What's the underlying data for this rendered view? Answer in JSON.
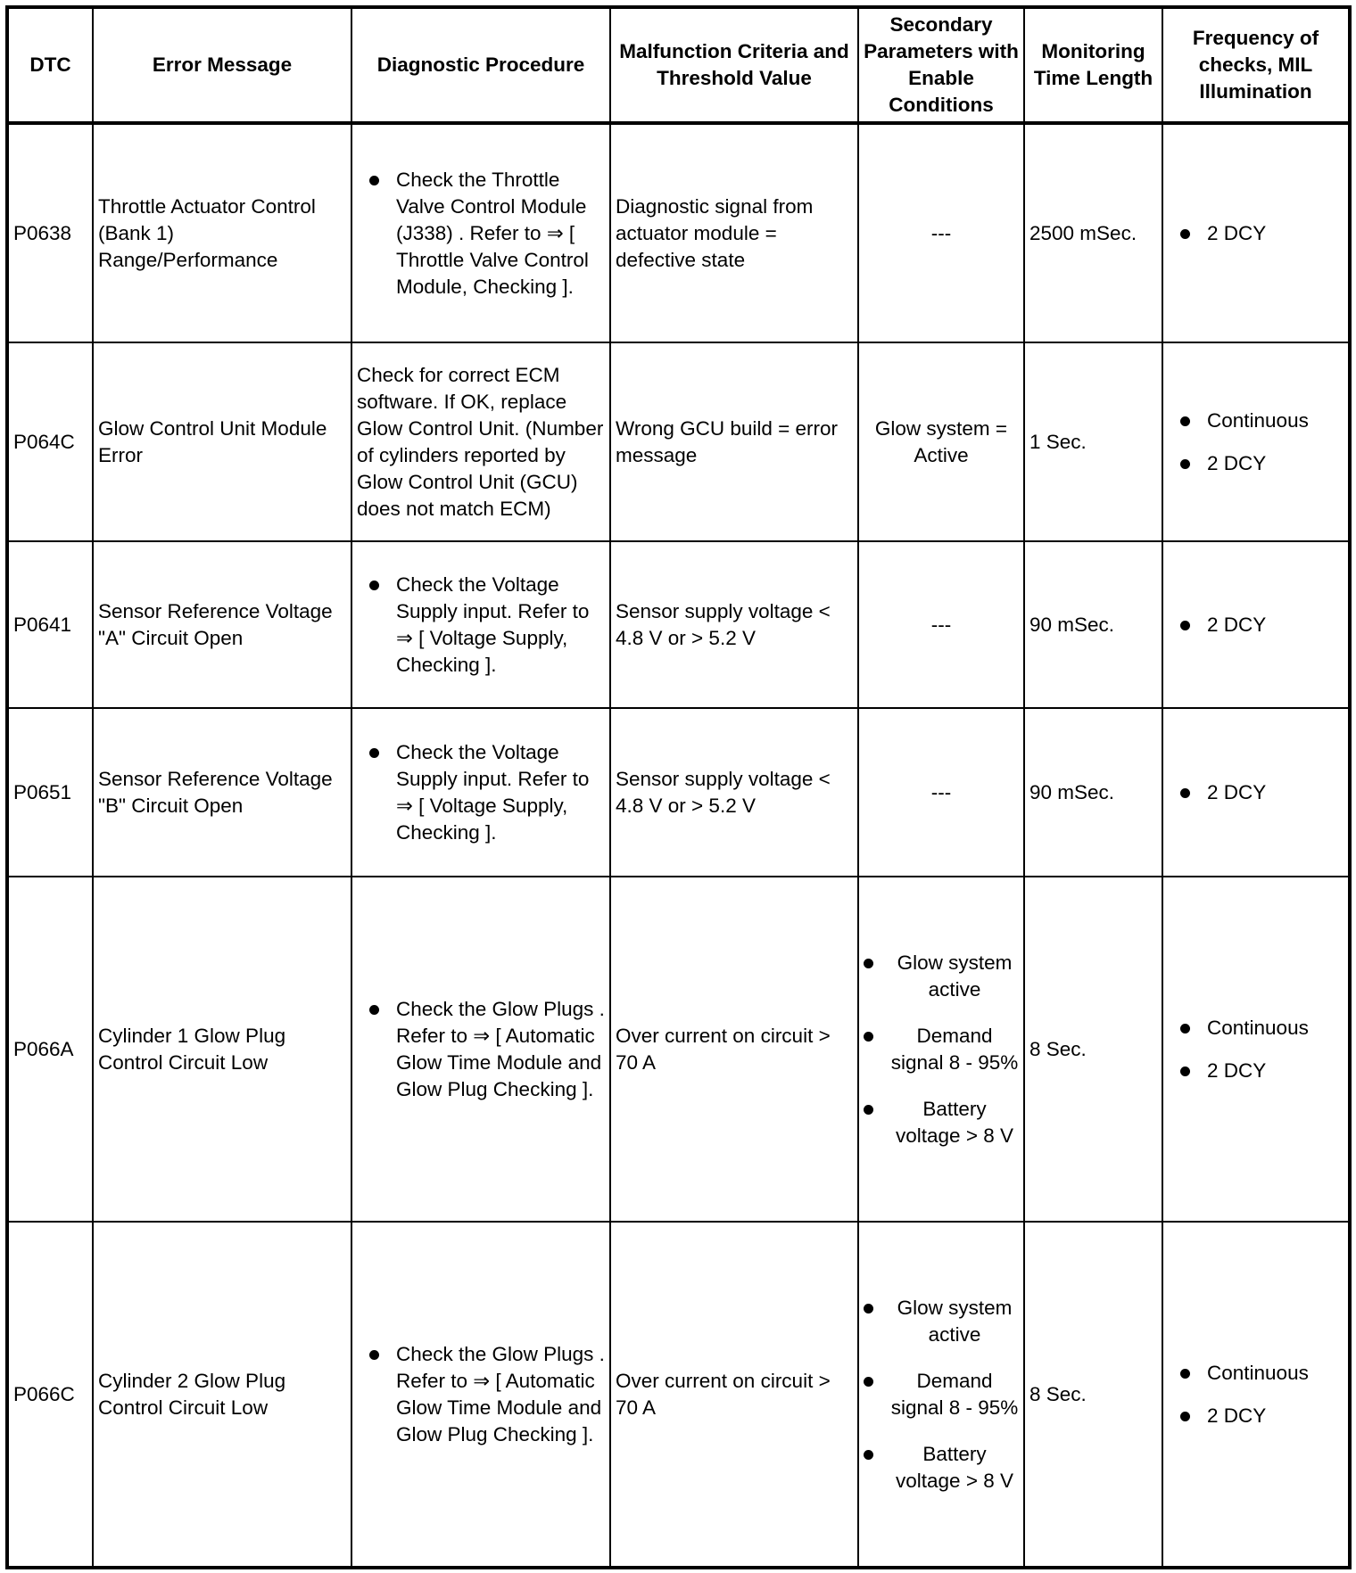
{
  "headers": [
    "DTC",
    "Error Message",
    "Diagnostic Procedure",
    "Malfunction Criteria and Threshold Value",
    "Secondary Parameters with Enable Conditions",
    "Monitoring Time Length",
    "Frequency of checks, MIL Illumination"
  ],
  "rows": [
    {
      "dtc": "P0638",
      "error": "Throttle Actuator Control (Bank 1) Range/Performance",
      "procedure_bullets": [
        "Check the Throttle Valve Control Module (J338) . Refer to ⇒ [ Throttle Valve Control Module, Checking ]."
      ],
      "procedure_text": "",
      "criteria": "Diagnostic signal from actuator module = defective state",
      "secondary_text": "---",
      "secondary_bullets": [],
      "time": "2500 mSec.",
      "frequency": [
        "2 DCY"
      ]
    },
    {
      "dtc": "P064C",
      "error": "Glow Control Unit Module Error",
      "procedure_bullets": [],
      "procedure_text": "Check for correct ECM software. If OK, replace Glow Control Unit. (Number of cylinders reported by Glow Control Unit (GCU) does not match ECM)",
      "criteria": "Wrong GCU build = error message",
      "secondary_text": "Glow system = Active",
      "secondary_bullets": [],
      "time": "1 Sec.",
      "frequency": [
        "Continuous",
        "2 DCY"
      ]
    },
    {
      "dtc": "P0641",
      "error": "Sensor Reference Voltage \"A\" Circuit Open",
      "procedure_bullets": [
        "Check the Voltage Supply input. Refer to ⇒ [ Voltage Supply, Checking ]."
      ],
      "procedure_text": "",
      "criteria": "Sensor supply voltage < 4.8 V or > 5.2 V",
      "secondary_text": "---",
      "secondary_bullets": [],
      "time": "90 mSec.",
      "frequency": [
        "2 DCY"
      ]
    },
    {
      "dtc": "P0651",
      "error": "Sensor Reference Voltage \"B\" Circuit Open",
      "procedure_bullets": [
        "Check the Voltage Supply input. Refer to ⇒ [ Voltage Supply, Checking ]."
      ],
      "procedure_text": "",
      "criteria": "Sensor supply voltage < 4.8 V or > 5.2 V",
      "secondary_text": "---",
      "secondary_bullets": [],
      "time": "90 mSec.",
      "frequency": [
        "2 DCY"
      ]
    },
    {
      "dtc": "P066A",
      "error": "Cylinder 1 Glow Plug Control Circuit Low",
      "procedure_bullets": [
        "Check the Glow Plugs . Refer to ⇒ [ Automatic Glow Time Module and Glow Plug Checking ]."
      ],
      "procedure_text": "",
      "criteria": "Over current on circuit > 70 A",
      "secondary_text": "",
      "secondary_bullets": [
        "Glow system active",
        "Demand signal 8 - 95%",
        "Battery voltage > 8 V"
      ],
      "time": "8 Sec.",
      "frequency": [
        "Continuous",
        "2 DCY"
      ]
    },
    {
      "dtc": "P066C",
      "error": "Cylinder 2 Glow Plug Control Circuit Low",
      "procedure_bullets": [
        "Check the Glow Plugs . Refer to ⇒ [ Automatic Glow Time Module and Glow Plug Checking ]."
      ],
      "procedure_text": "",
      "criteria": "Over current on circuit > 70 A",
      "secondary_text": "",
      "secondary_bullets": [
        "Glow system active",
        "Demand signal 8 - 95%",
        "Battery voltage > 8 V"
      ],
      "time": "8 Sec.",
      "frequency": [
        "Continuous",
        "2 DCY"
      ]
    }
  ]
}
